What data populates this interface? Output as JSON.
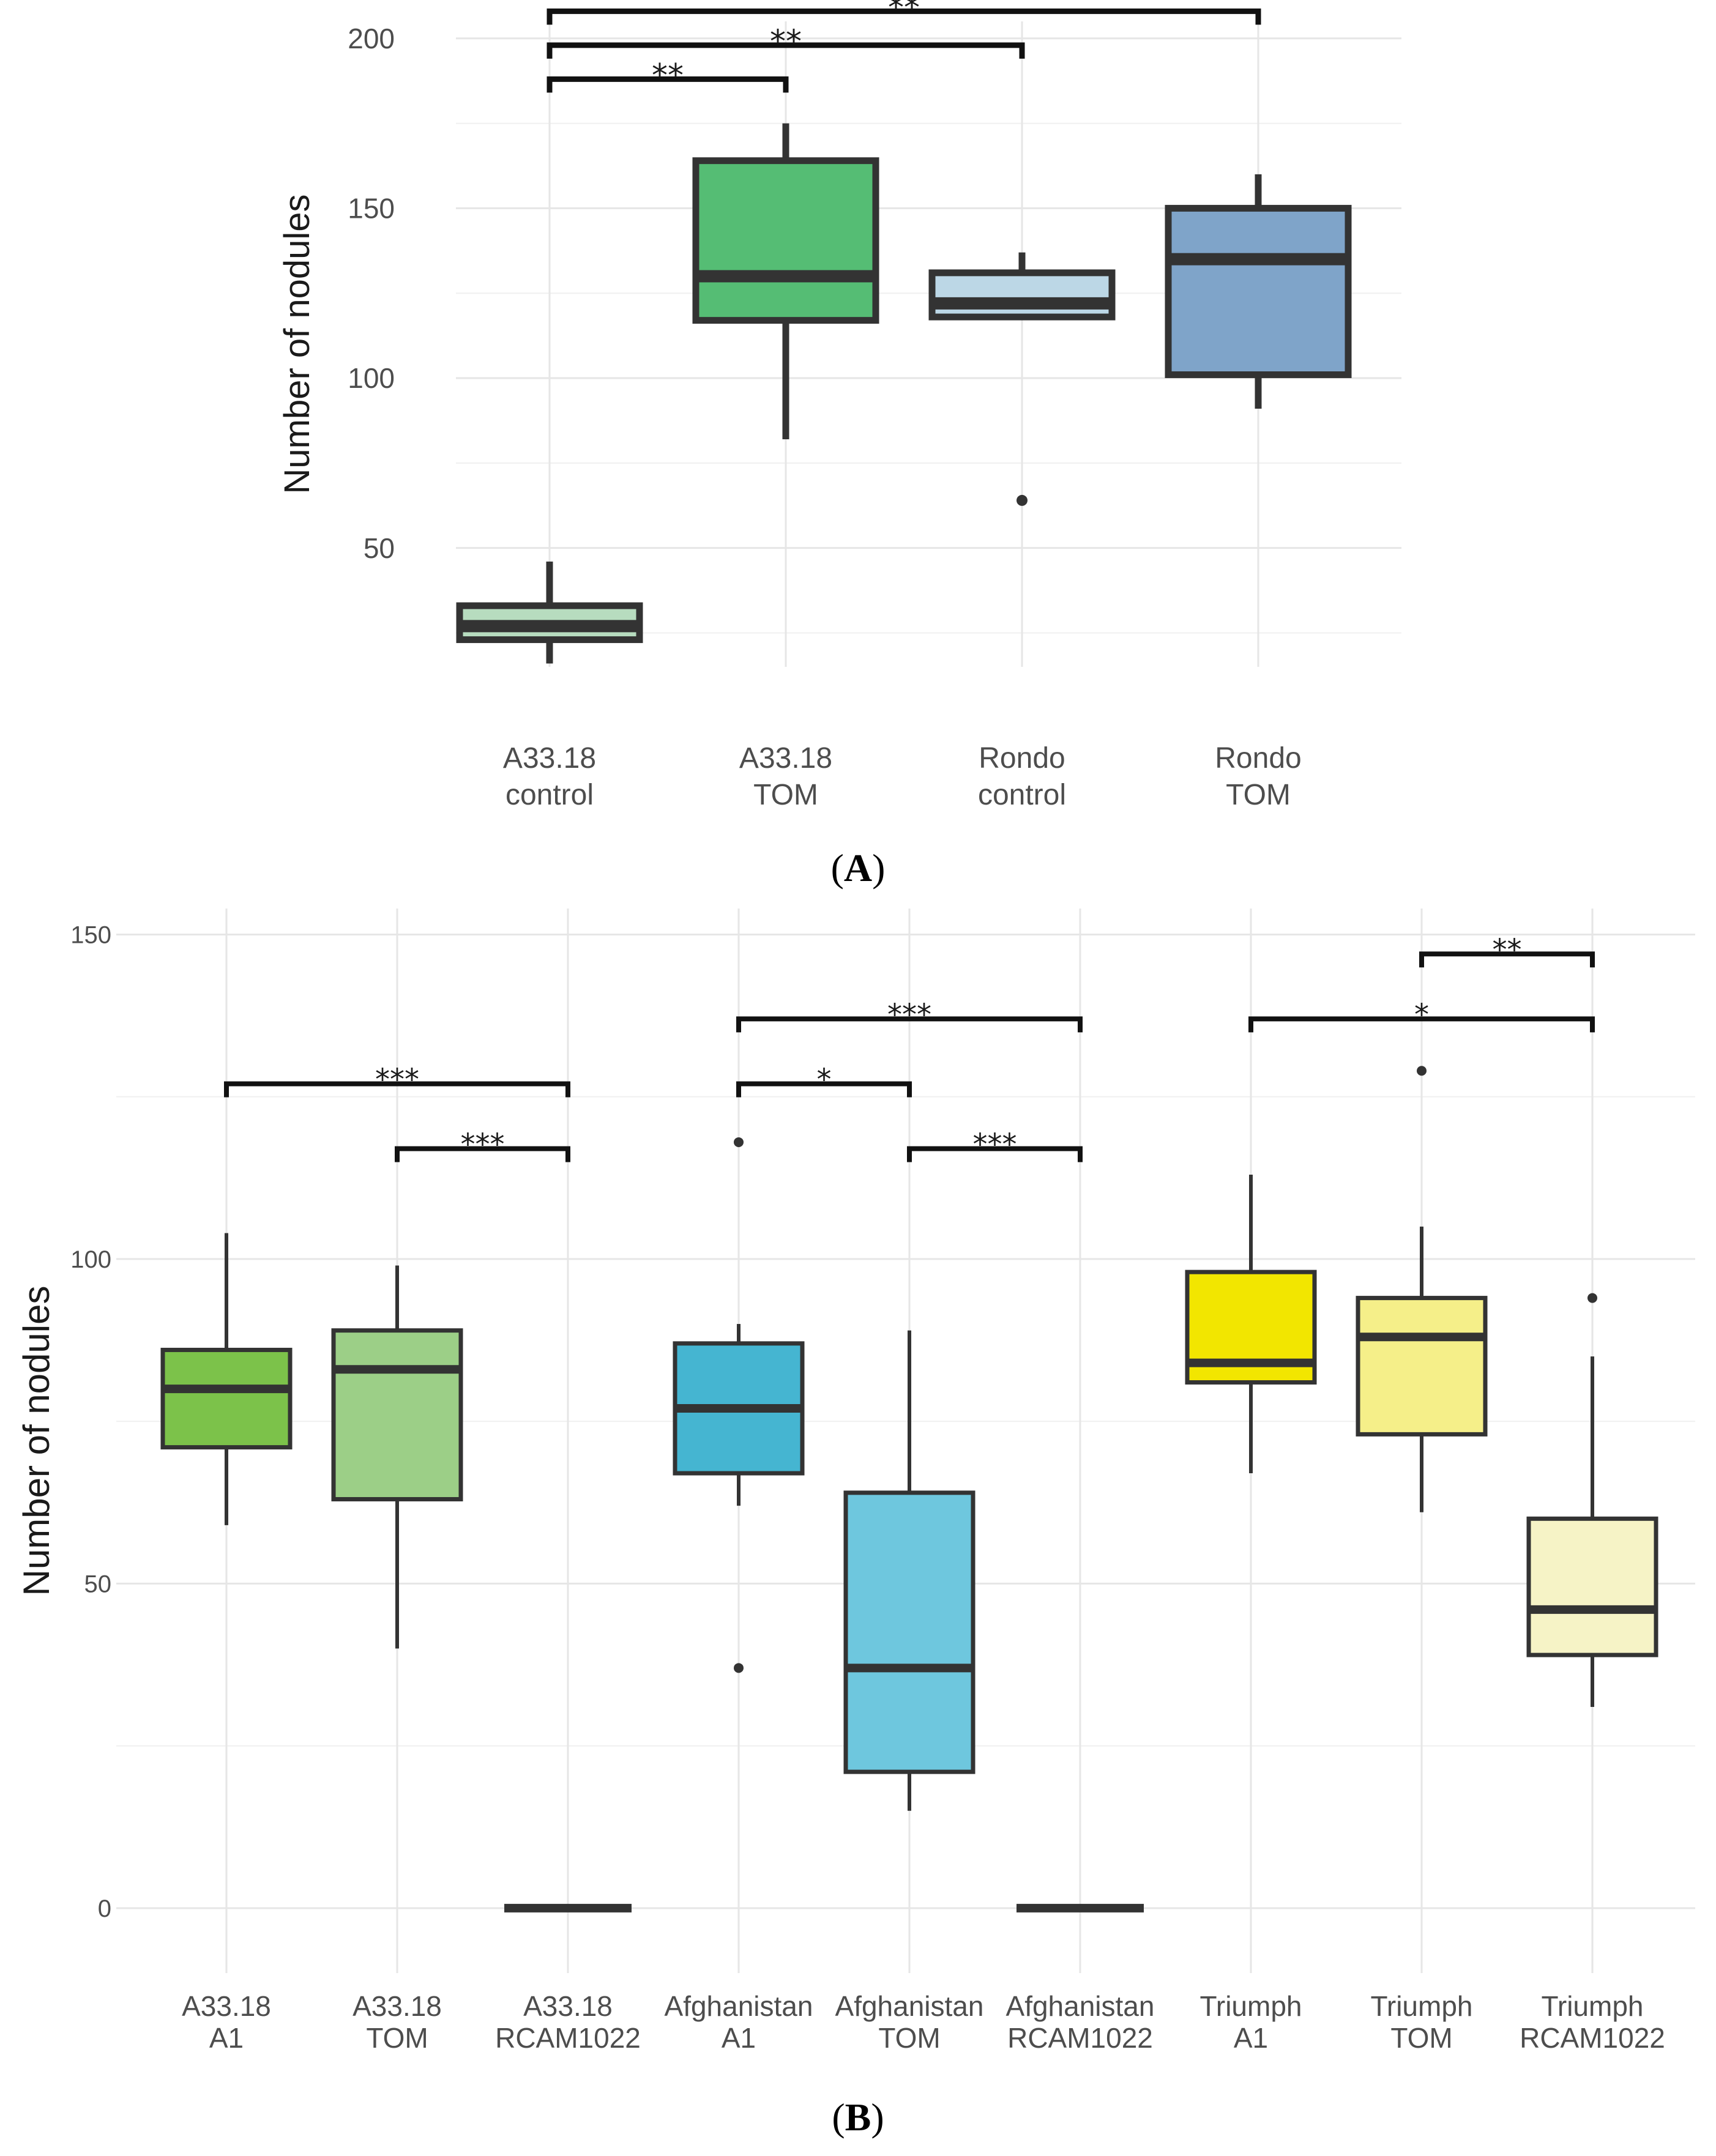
{
  "chart_data": [
    {
      "type": "box",
      "panel": "A",
      "panel_label_text": "A",
      "ylabel": "Number of nodules",
      "ylim": [
        15,
        205
      ],
      "yticks": [
        50,
        100,
        150,
        200
      ],
      "categories": [
        {
          "line1": "A33.18",
          "line2": "control",
          "color": "#b7dcbf",
          "q1": 23,
          "median": 27,
          "q3": 33,
          "wlow": 16,
          "whigh": 46,
          "outliers": []
        },
        {
          "line1": "A33.18",
          "line2": "TOM",
          "color": "#55bd74",
          "q1": 117,
          "median": 130,
          "q3": 164,
          "wlow": 82,
          "whigh": 175,
          "outliers": []
        },
        {
          "line1": "Rondo",
          "line2": "control",
          "color": "#bcd7e6",
          "q1": 118,
          "median": 122,
          "q3": 131,
          "wlow": 118,
          "whigh": 137,
          "outliers": [
            64
          ]
        },
        {
          "line1": "Rondo",
          "line2": "TOM",
          "color": "#7fa4c9",
          "q1": 101,
          "median": 135,
          "q3": 150,
          "wlow": 91,
          "whigh": 160,
          "outliers": []
        }
      ],
      "significance": [
        {
          "from": 0,
          "to": 1,
          "level": 188,
          "label": "**"
        },
        {
          "from": 0,
          "to": 2,
          "level": 198,
          "label": "**"
        },
        {
          "from": 0,
          "to": 3,
          "level": 208,
          "label": "**"
        }
      ]
    },
    {
      "type": "box",
      "panel": "B",
      "panel_label_text": "B",
      "ylabel": "Number of nodules",
      "ylim": [
        -10,
        154
      ],
      "yticks": [
        0,
        50,
        100,
        150
      ],
      "categories": [
        {
          "line1": "A33.18",
          "line2": "A1",
          "color": "#7cc24a",
          "q1": 71,
          "median": 80,
          "q3": 86,
          "wlow": 59,
          "whigh": 104,
          "outliers": []
        },
        {
          "line1": "A33.18",
          "line2": "TOM",
          "color": "#9ccf87",
          "q1": 63,
          "median": 83,
          "q3": 89,
          "wlow": 40,
          "whigh": 99,
          "outliers": []
        },
        {
          "line1": "A33.18",
          "line2": "RCAM1022",
          "color": "#ffffff",
          "q1": 0,
          "median": 0,
          "q3": 0,
          "wlow": 0,
          "whigh": 0,
          "outliers": []
        },
        {
          "line1": "Afghanistan",
          "line2": "A1",
          "color": "#45b5d1",
          "q1": 67,
          "median": 77,
          "q3": 87,
          "wlow": 62,
          "whigh": 90,
          "outliers": [
            118,
            37
          ]
        },
        {
          "line1": "Afghanistan",
          "line2": "TOM",
          "color": "#6ec7de",
          "q1": 21,
          "median": 37,
          "q3": 64,
          "wlow": 15,
          "whigh": 89,
          "outliers": []
        },
        {
          "line1": "Afghanistan",
          "line2": "RCAM1022",
          "color": "#ffffff",
          "q1": 0,
          "median": 0,
          "q3": 0,
          "wlow": 0,
          "whigh": 0,
          "outliers": []
        },
        {
          "line1": "Triumph",
          "line2": "A1",
          "color": "#f2e600",
          "q1": 81,
          "median": 84,
          "q3": 98,
          "wlow": 67,
          "whigh": 113,
          "outliers": []
        },
        {
          "line1": "Triumph",
          "line2": "TOM",
          "color": "#f5ef89",
          "q1": 73,
          "median": 88,
          "q3": 94,
          "wlow": 61,
          "whigh": 105,
          "outliers": [
            129
          ]
        },
        {
          "line1": "Triumph",
          "line2": "RCAM1022",
          "color": "#f6f3c6",
          "q1": 39,
          "median": 46,
          "q3": 60,
          "wlow": 31,
          "whigh": 85,
          "outliers": [
            94
          ]
        }
      ],
      "significance": [
        {
          "from": 0,
          "to": 2,
          "level": 127,
          "label": "***"
        },
        {
          "from": 1,
          "to": 2,
          "level": 117,
          "label": "***"
        },
        {
          "from": 3,
          "to": 4,
          "level": 127,
          "label": "*"
        },
        {
          "from": 3,
          "to": 5,
          "level": 137,
          "label": "***"
        },
        {
          "from": 4,
          "to": 5,
          "level": 117,
          "label": "***"
        },
        {
          "from": 6,
          "to": 8,
          "level": 137,
          "label": "*"
        },
        {
          "from": 7,
          "to": 8,
          "level": 147,
          "label": "**"
        }
      ]
    }
  ]
}
